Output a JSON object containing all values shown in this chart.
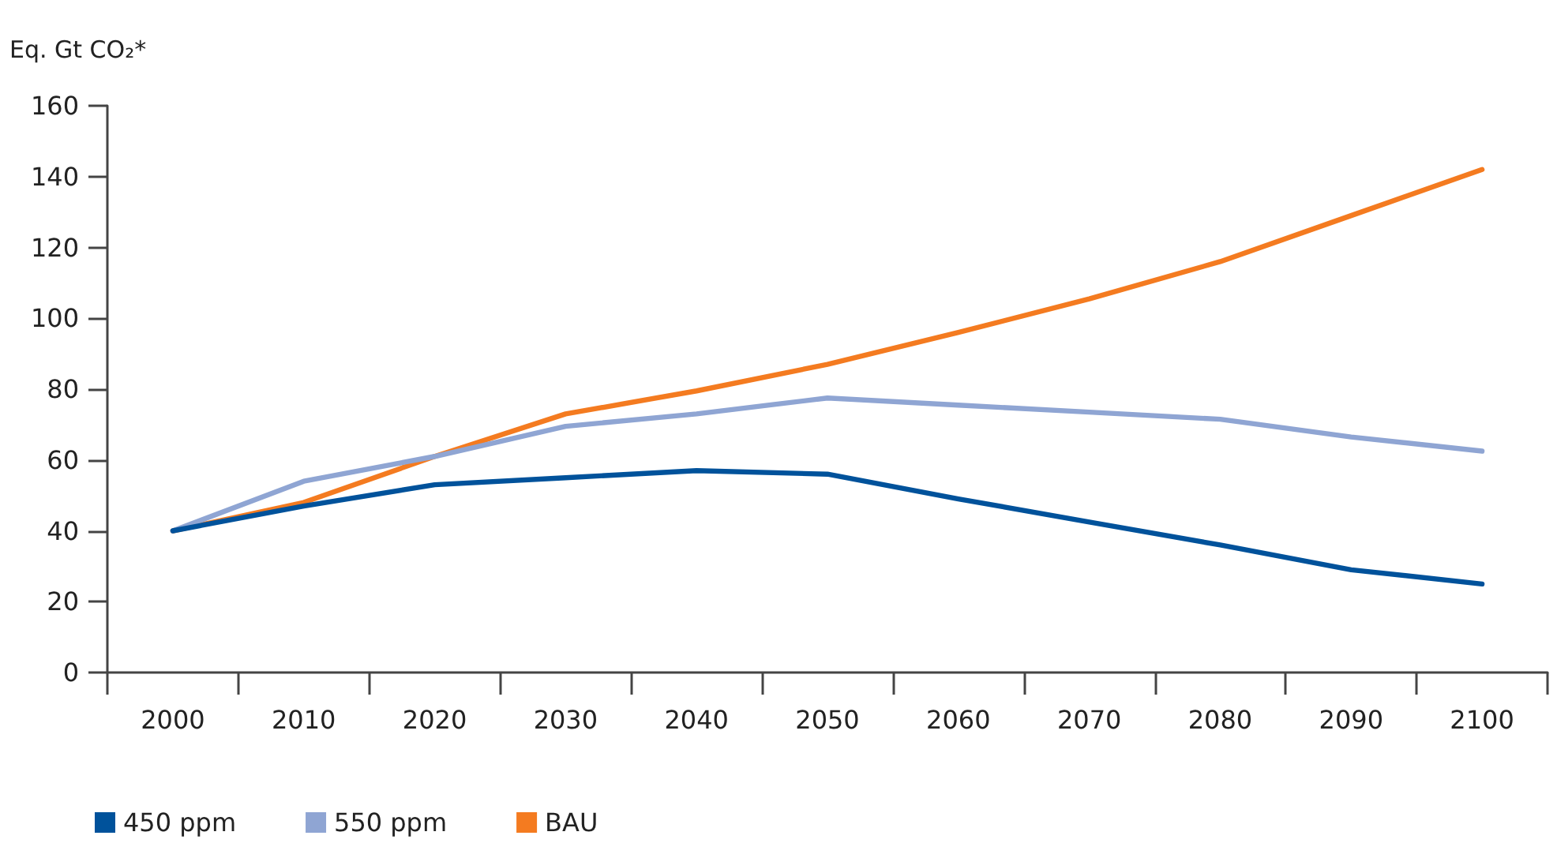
{
  "chart_data": {
    "type": "line",
    "ylabel": "Eq. Gt CO₂*",
    "categories": [
      "2000",
      "2010",
      "2020",
      "2030",
      "2040",
      "2050",
      "2060",
      "2070",
      "2080",
      "2090",
      "2100"
    ],
    "series": [
      {
        "name": "450 ppm",
        "color": "#00529b",
        "values": [
          40,
          47,
          53,
          55,
          57,
          56,
          49,
          42.5,
          36,
          29,
          25
        ]
      },
      {
        "name": "550 ppm",
        "color": "#8fa5d3",
        "values": [
          40,
          54,
          61,
          69.5,
          73,
          77.5,
          75.5,
          73.5,
          71.5,
          66.5,
          62.5
        ]
      },
      {
        "name": "BAU",
        "color": "#f47b20",
        "values": [
          40,
          48,
          61,
          73,
          79.5,
          87,
          96,
          105.5,
          116,
          129,
          142
        ]
      }
    ],
    "ylim": [
      0,
      160
    ],
    "yticks": [
      0,
      20,
      40,
      60,
      80,
      100,
      120,
      140,
      160
    ],
    "grid": false,
    "legend": "bottom left",
    "marker": "none",
    "line_style": "solid"
  }
}
